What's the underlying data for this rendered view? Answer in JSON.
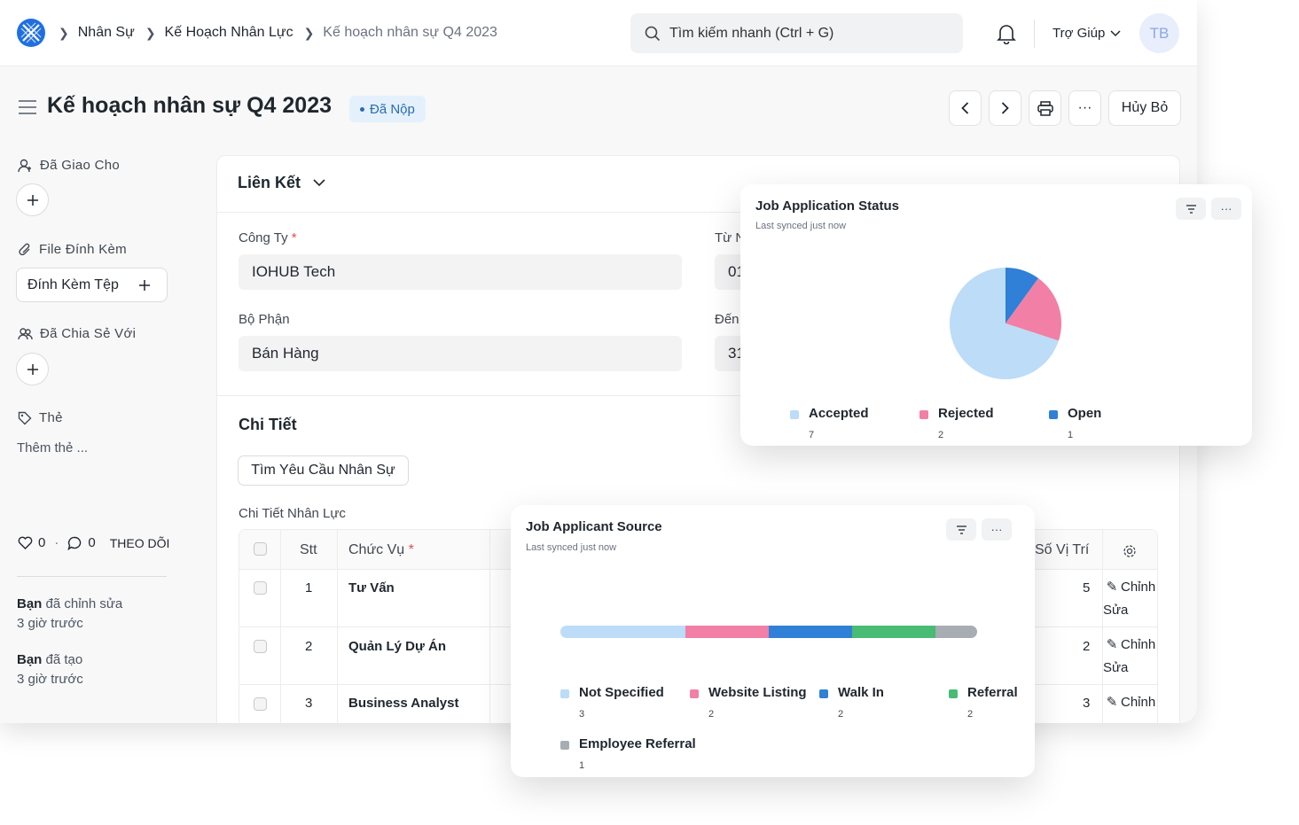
{
  "breadcrumb": {
    "items": [
      "Nhân Sự",
      "Kế Hoạch Nhân Lực",
      "Kế hoạch nhân sự Q4 2023"
    ]
  },
  "search": {
    "placeholder": "Tìm kiếm nhanh (Ctrl + G)"
  },
  "navbar": {
    "help_label": "Trợ Giúp",
    "avatar_initials": "TB"
  },
  "page": {
    "title": "Kế hoạch nhân sự Q4 2023",
    "status": "Đã Nộp",
    "cancel_label": "Hủy Bỏ",
    "more_label": "···"
  },
  "sidebar": {
    "assigned_label": "Đã Giao Cho",
    "attachments_label": "File Đính Kèm",
    "attach_button": "Đính Kèm Tệp",
    "shared_label": "Đã Chia Sẻ Với",
    "tags_label": "Thẻ",
    "add_tag": "Thêm thẻ ...",
    "likes": "0",
    "comments": "0",
    "dot": "·",
    "follow_label": "THEO DÕI",
    "activity": [
      {
        "who": "Bạn",
        "action": "đã chỉnh sửa",
        "when": "3 giờ trước"
      },
      {
        "who": "Bạn",
        "action": "đã tạo",
        "when": "3 giờ trước"
      }
    ]
  },
  "form": {
    "section_title": "Liên Kết",
    "company_label": "Công Ty",
    "company_value": "IOHUB Tech",
    "from_label": "Từ N",
    "from_value": "01",
    "department_label": "Bộ Phận",
    "department_value": "Bán Hàng",
    "to_label": "Đến",
    "to_value": "31",
    "required_mark": "*",
    "details_title": "Chi Tiết",
    "find_button": "Tìm Yêu Cầu Nhân Sự",
    "table_label": "Chi Tiết Nhân Lực"
  },
  "table": {
    "headers": {
      "stt": "Stt",
      "position": "Chức Vụ",
      "vacancies": "Số Vị Trí"
    },
    "rows": [
      {
        "stt": "1",
        "position": "Tư Vấn",
        "vacancies": "5",
        "edit": "Chỉnh Sửa"
      },
      {
        "stt": "2",
        "position": "Quản Lý Dự Án",
        "vacancies": "2",
        "edit": "Chỉnh Sửa"
      },
      {
        "stt": "3",
        "position": "Business Analyst",
        "vacancies": "3",
        "edit": "Chỉnh"
      }
    ]
  },
  "status_chart": {
    "title": "Job Application Status",
    "subtitle": "Last synced just now",
    "chart_data": {
      "type": "pie",
      "categories": [
        "Accepted",
        "Rejected",
        "Open"
      ],
      "values": [
        7,
        2,
        1
      ],
      "colors": [
        "#bcdcf7",
        "#f27fa5",
        "#2f80d6"
      ],
      "legend_placement": "bottom"
    }
  },
  "source_chart": {
    "title": "Job Applicant Source",
    "subtitle": "Last synced just now",
    "chart_data": {
      "type": "bar",
      "orientation": "horizontal-stacked-percentage",
      "categories": [
        "Not Specified",
        "Website Listing",
        "Walk In",
        "Referral",
        "Employee Referral"
      ],
      "values": [
        3,
        2,
        2,
        2,
        1
      ],
      "colors": [
        "#bcdcf7",
        "#f27fa5",
        "#2f80d6",
        "#48bb74",
        "#a7adb3"
      ],
      "legend_placement": "bottom"
    }
  }
}
